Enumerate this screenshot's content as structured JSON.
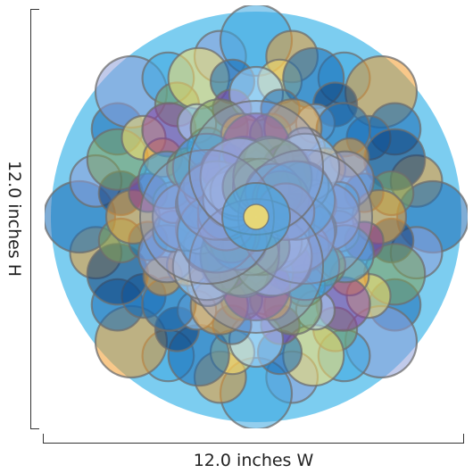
{
  "dimensions": {
    "width_label": "12.0 inches W",
    "height_label": "12.0 inches H"
  },
  "artwork": {
    "background_color": "#7ccdf0",
    "outline_color": "#6e6e6e",
    "palette": [
      "#f39a2a",
      "#1669b5",
      "#3aa5e0",
      "#8e9fd8",
      "#7ea05a",
      "#8b3d9a",
      "#ffe066",
      "#0d3d75",
      "#aed6f5"
    ]
  }
}
